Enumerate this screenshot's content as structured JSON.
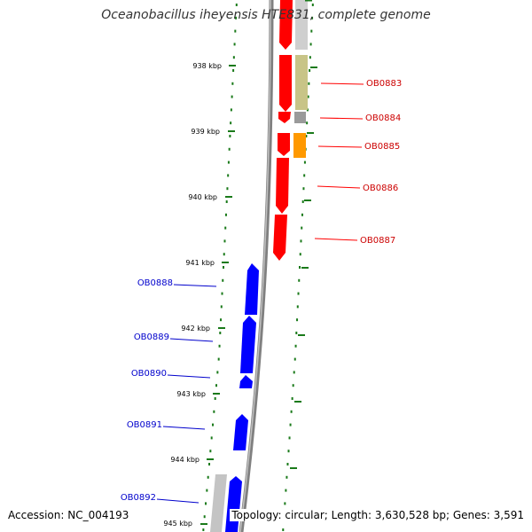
{
  "title": "Oceanobacillus iheyensis HTE831, complete genome",
  "accession": "Accession: NC_004193",
  "topology": "Topology: circular; Length: 3,630,528 bp; Genes: 3,591",
  "colors": {
    "forward": "#ff0000",
    "reverse": "#0000ff",
    "tick": "#1a7a1a",
    "backbone": "#888888",
    "cog_olive": "#c8c487",
    "cog_gray": "#9a9a9a",
    "cog_light": "#cfcfcf",
    "cog_orange": "#ff9900"
  },
  "ticks": [
    "938 kbp",
    "939 kbp",
    "940 kbp",
    "941 kbp",
    "942 kbp",
    "943 kbp",
    "944 kbp",
    "945 kbp"
  ],
  "genes_forward": [
    "OB0883",
    "OB0884",
    "OB0885",
    "OB0886",
    "OB0887"
  ],
  "genes_reverse": [
    "OB0888",
    "OB0889",
    "OB0890",
    "OB0891",
    "OB0892"
  ]
}
